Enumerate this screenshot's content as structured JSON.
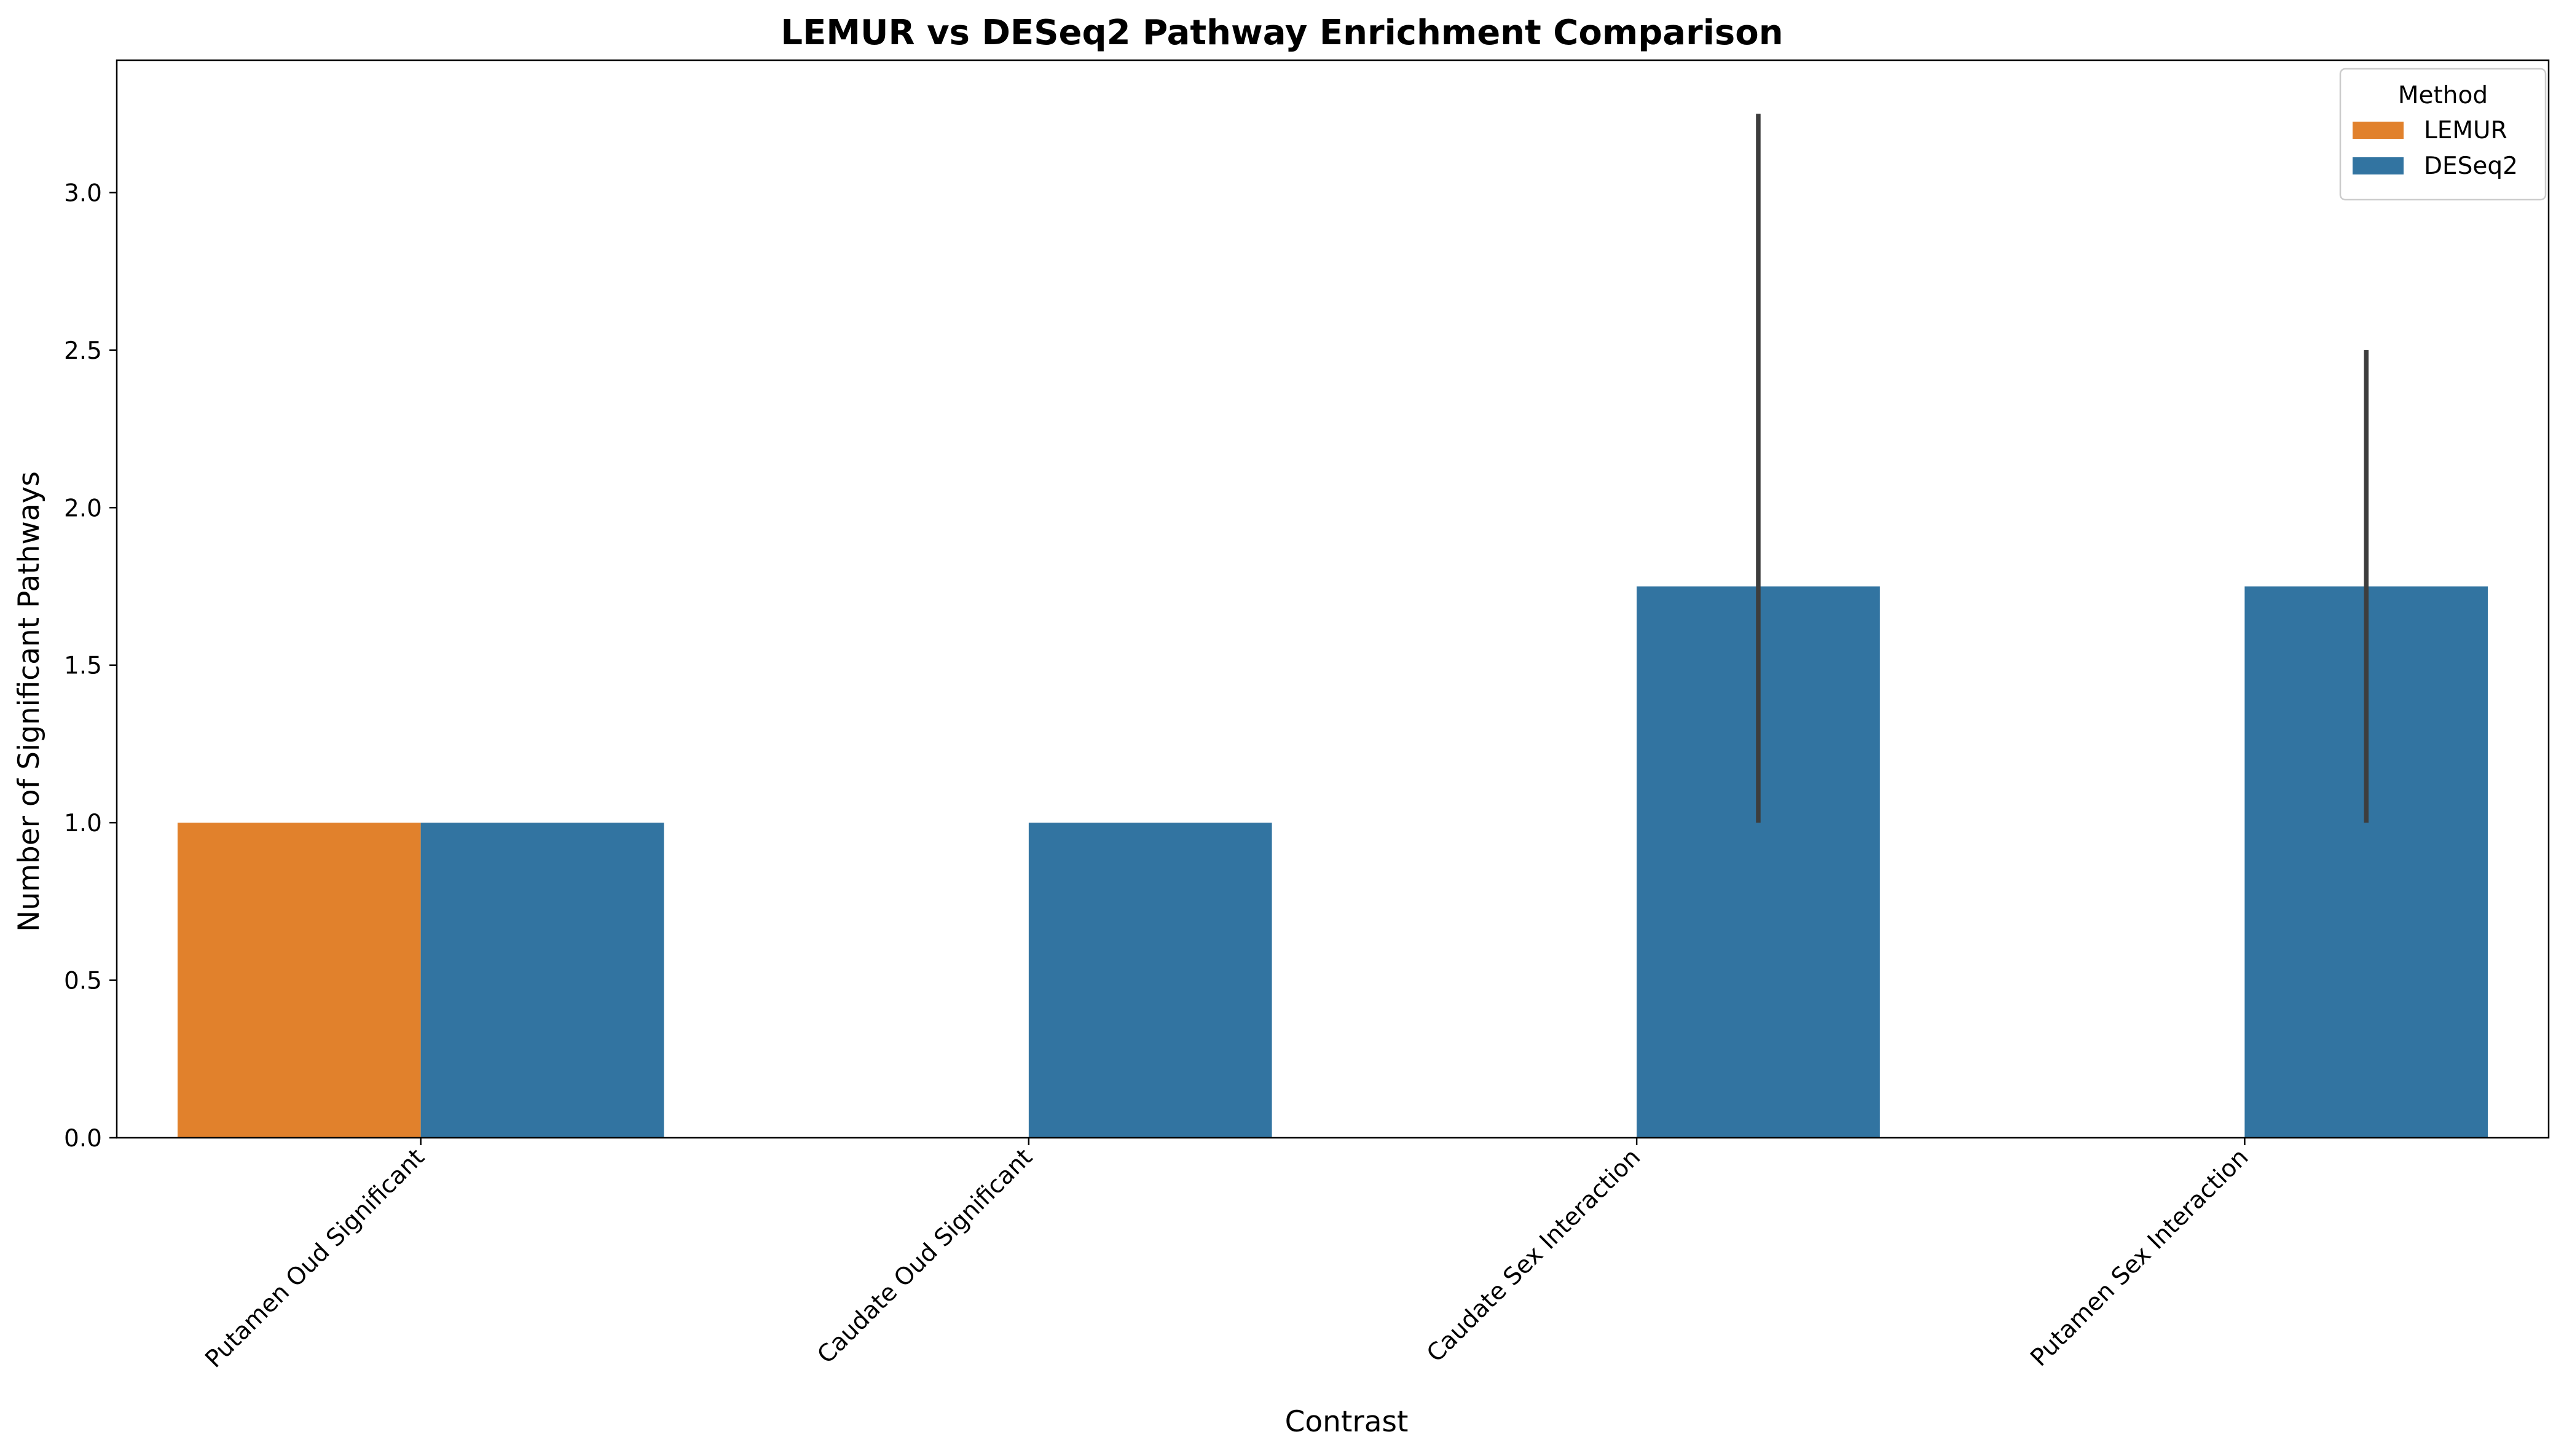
{
  "chart_data": {
    "type": "bar",
    "title": "LEMUR vs DESeq2 Pathway Enrichment Comparison",
    "xlabel": "Contrast",
    "ylabel": "Number of Significant Pathways",
    "categories": [
      "Putamen Oud Significant",
      "Caudate Oud Significant",
      "Caudate Sex Interaction",
      "Putamen Sex Interaction"
    ],
    "series": [
      {
        "name": "LEMUR",
        "color": "#e1812c",
        "values": [
          1.0,
          null,
          null,
          null
        ],
        "error_low": [
          null,
          null,
          null,
          null
        ],
        "error_high": [
          null,
          null,
          null,
          null
        ]
      },
      {
        "name": "DESeq2",
        "color": "#3274a1",
        "values": [
          1.0,
          1.0,
          1.75,
          1.75
        ],
        "error_low": [
          null,
          null,
          1.0,
          1.0
        ],
        "error_high": [
          null,
          null,
          3.25,
          2.5
        ]
      }
    ],
    "ylim": [
      0,
      3.42
    ],
    "yticks": [
      0.0,
      0.5,
      1.0,
      1.5,
      2.0,
      2.5,
      3.0
    ],
    "ytick_labels": [
      "0.0",
      "0.5",
      "1.0",
      "1.5",
      "2.0",
      "2.5",
      "3.0"
    ],
    "grid": false,
    "legend": {
      "title": "Method",
      "position": "top-right"
    }
  }
}
